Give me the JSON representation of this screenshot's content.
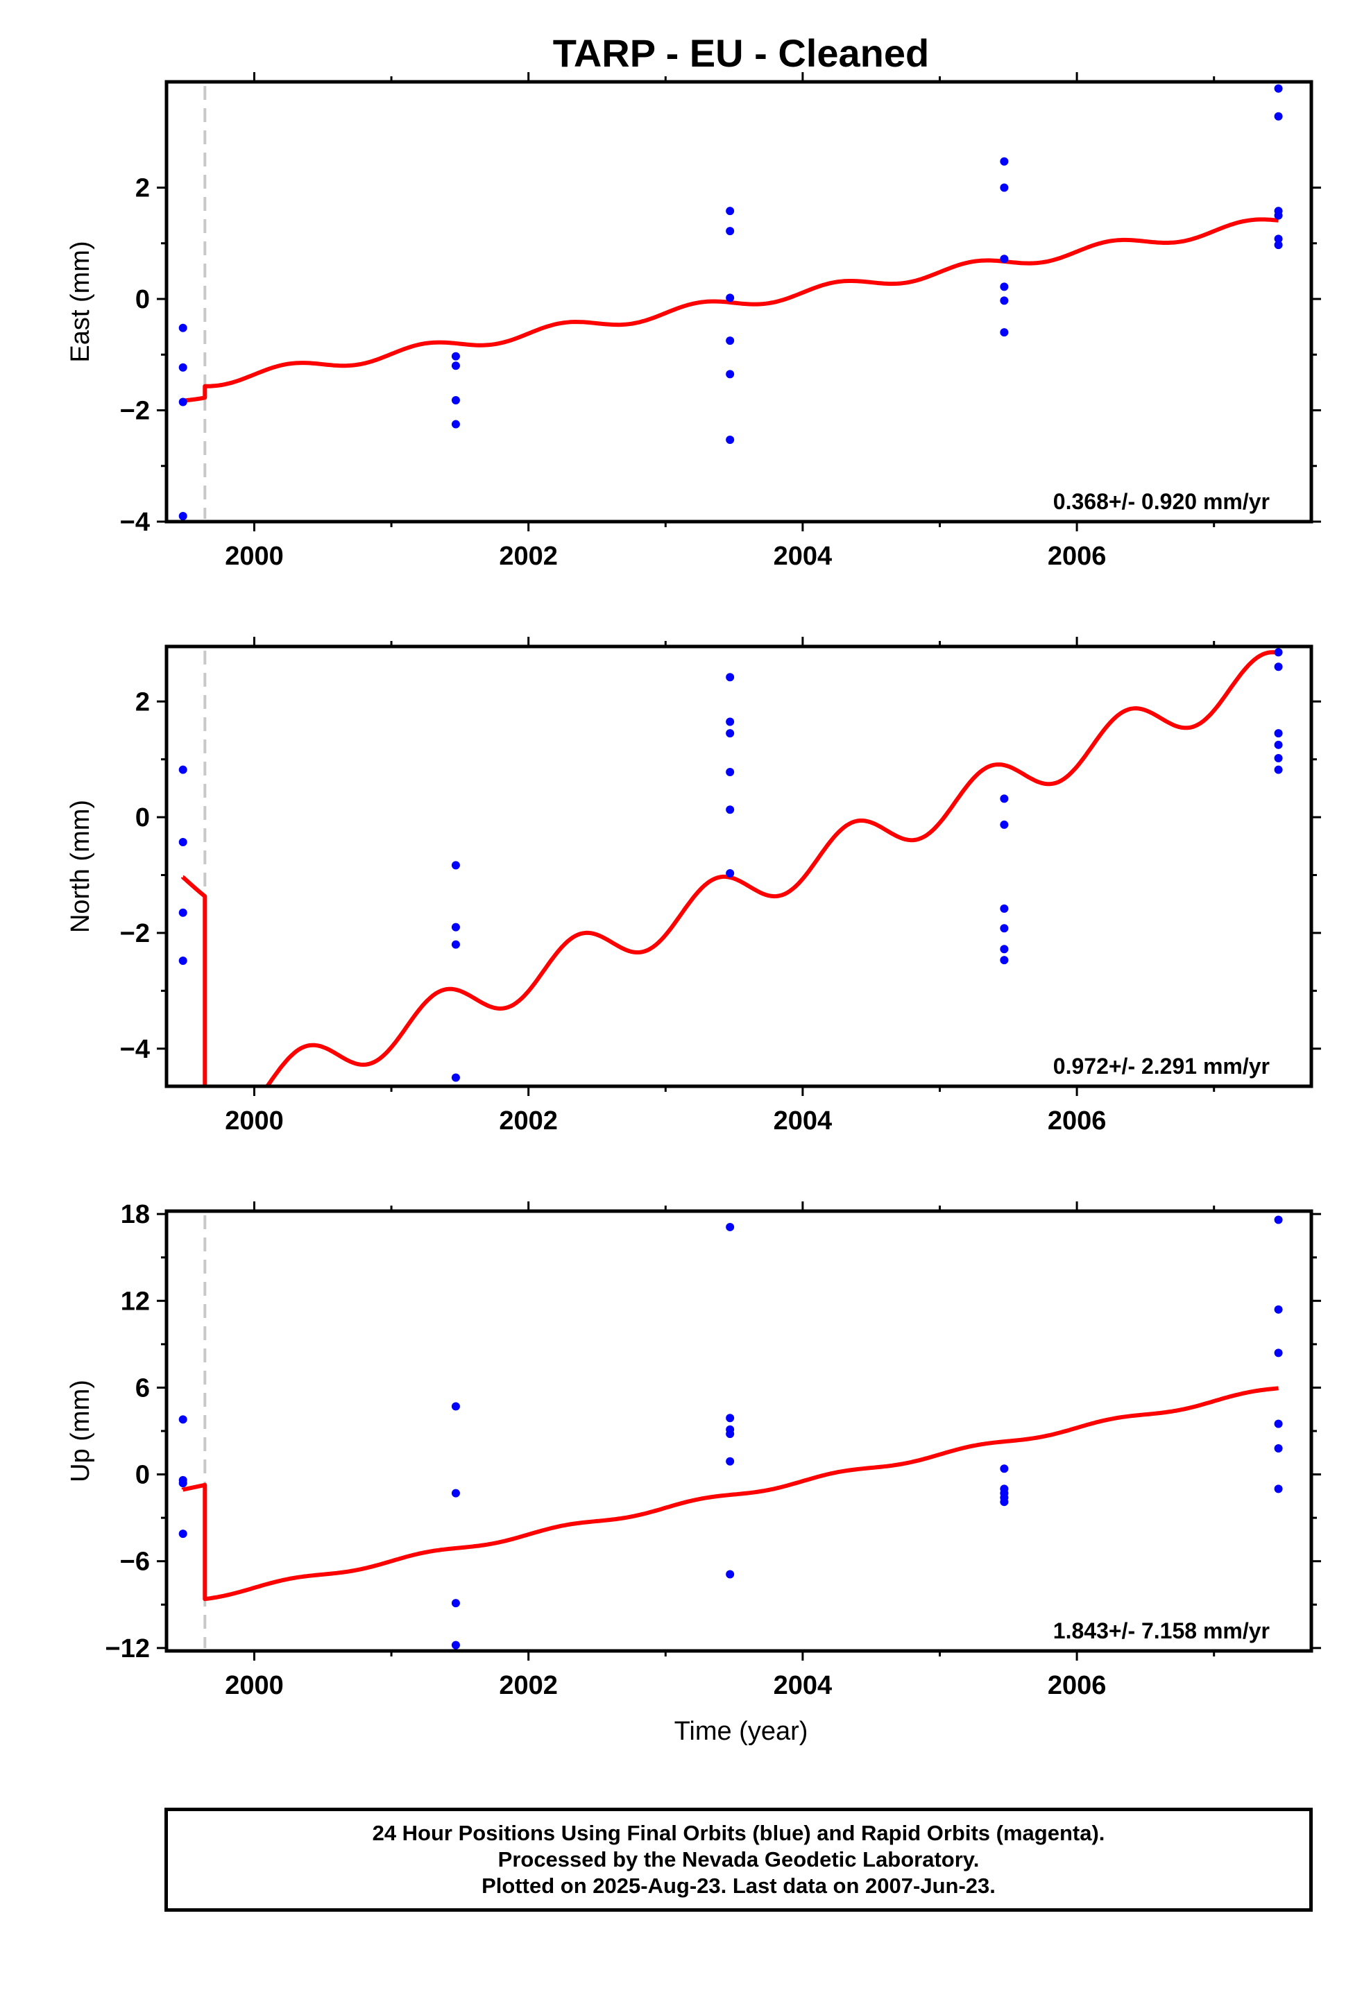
{
  "title": "TARP  - EU - Cleaned",
  "xlabel": "Time (year)",
  "footer": {
    "line1": "24 Hour Positions Using Final Orbits (blue) and Rapid Orbits (magenta).",
    "line2": "Processed by the Nevada Geodetic Laboratory.",
    "line3": "Plotted on 2025-Aug-23. Last data on 2007-Jun-23."
  },
  "colors": {
    "data": "#0000ff",
    "model": "#ff0000",
    "event_line": "#c8c8c8",
    "frame": "#000000"
  },
  "chart_data": [
    {
      "type": "scatter",
      "ylabel": "East (mm)",
      "rate": "0.368+/- 0.920 mm/yr",
      "xlim": [
        1999.36,
        2007.71
      ],
      "ylim": [
        -4.0,
        3.9
      ],
      "xticks": [
        2000,
        2002,
        2004,
        2006
      ],
      "yticks": [
        -4,
        -2,
        0,
        2
      ],
      "ytick_labels": [
        "−4",
        "−2",
        "0",
        "2"
      ],
      "event_line_x": 1999.64,
      "series": [
        {
          "points": [
            [
              1999.48,
              -0.52
            ],
            [
              1999.48,
              -1.23
            ],
            [
              1999.48,
              -1.85
            ],
            [
              1999.48,
              -3.9
            ],
            [
              2001.47,
              -1.03
            ],
            [
              2001.47,
              -1.2
            ],
            [
              2001.47,
              -1.82
            ],
            [
              2001.47,
              -2.25
            ],
            [
              2003.47,
              1.58
            ],
            [
              2003.47,
              1.22
            ],
            [
              2003.47,
              0.02
            ],
            [
              2003.47,
              -0.75
            ],
            [
              2003.47,
              -1.35
            ],
            [
              2003.47,
              -2.53
            ],
            [
              2005.47,
              2.47
            ],
            [
              2005.47,
              2.0
            ],
            [
              2005.47,
              0.72
            ],
            [
              2005.47,
              0.22
            ],
            [
              2005.47,
              -0.03
            ],
            [
              2005.47,
              -0.6
            ],
            [
              2007.47,
              3.78
            ],
            [
              2007.47,
              3.28
            ],
            [
              2007.47,
              1.58
            ],
            [
              2007.47,
              1.5
            ],
            [
              2007.47,
              1.08
            ],
            [
              2007.47,
              0.97
            ]
          ]
        }
      ],
      "model": {
        "segments": [
          {
            "x_start": 1999.48,
            "x_end": 1999.64,
            "slope": 0.9,
            "intercept": -1.84,
            "amplitude": 0.1,
            "phase": 0.0
          },
          {
            "x_start": 1999.64,
            "x_end": 2007.47,
            "slope": 0.368,
            "intercept": -1.49,
            "amplitude": 0.1,
            "phase": 0.0
          }
        ]
      }
    },
    {
      "type": "scatter",
      "ylabel": "North (mm)",
      "rate": "0.972+/- 2.291 mm/yr",
      "xlim": [
        1999.36,
        2007.71
      ],
      "ylim": [
        -4.65,
        2.95
      ],
      "xticks": [
        2000,
        2002,
        2004,
        2006
      ],
      "yticks": [
        -4,
        -2,
        0,
        2
      ],
      "ytick_labels": [
        "−4",
        "−2",
        "0",
        "2"
      ],
      "event_line_x": 1999.64,
      "series": [
        {
          "points": [
            [
              1999.48,
              0.82
            ],
            [
              1999.48,
              -0.43
            ],
            [
              1999.48,
              -1.65
            ],
            [
              1999.48,
              -2.48
            ],
            [
              2001.47,
              -0.83
            ],
            [
              2001.47,
              -1.9
            ],
            [
              2001.47,
              -2.2
            ],
            [
              2001.47,
              -4.5
            ],
            [
              2003.47,
              2.42
            ],
            [
              2003.47,
              1.65
            ],
            [
              2003.47,
              1.45
            ],
            [
              2003.47,
              0.78
            ],
            [
              2003.47,
              0.13
            ],
            [
              2003.47,
              -0.97
            ],
            [
              2005.47,
              0.32
            ],
            [
              2005.47,
              -0.13
            ],
            [
              2005.47,
              -1.58
            ],
            [
              2005.47,
              -1.92
            ],
            [
              2005.47,
              -2.28
            ],
            [
              2005.47,
              -2.47
            ],
            [
              2007.47,
              2.85
            ],
            [
              2007.47,
              2.6
            ],
            [
              2007.47,
              1.45
            ],
            [
              2007.47,
              1.25
            ],
            [
              2007.47,
              1.02
            ],
            [
              2007.47,
              0.82
            ]
          ]
        }
      ],
      "model": {
        "segments": [
          {
            "x_start": 1999.48,
            "x_end": 1999.64,
            "slope": -1.5,
            "intercept": -1.05,
            "amplitude": 0.1,
            "phase": 0.0
          },
          {
            "x_start": 1999.64,
            "x_end": 2007.47,
            "slope": 0.97,
            "intercept": -5.05,
            "amplitude": 0.38,
            "phase": -0.7
          }
        ]
      }
    },
    {
      "type": "scatter",
      "ylabel": "Up (mm)",
      "rate": "1.843+/- 7.158 mm/yr",
      "xlim": [
        1999.36,
        2007.71
      ],
      "ylim": [
        -12.2,
        18.2
      ],
      "xticks": [
        2000,
        2002,
        2004,
        2006
      ],
      "yticks": [
        -12,
        -6,
        0,
        6,
        12,
        18
      ],
      "ytick_labels": [
        "−12",
        "−6",
        "0",
        "6",
        "12",
        "18"
      ],
      "event_line_x": 1999.64,
      "series": [
        {
          "points": [
            [
              1999.48,
              3.8
            ],
            [
              1999.48,
              -0.4
            ],
            [
              1999.48,
              -0.6
            ],
            [
              1999.48,
              -4.1
            ],
            [
              2001.47,
              4.7
            ],
            [
              2001.47,
              -1.3
            ],
            [
              2001.47,
              -8.9
            ],
            [
              2001.47,
              -11.8
            ],
            [
              2003.47,
              17.1
            ],
            [
              2003.47,
              3.9
            ],
            [
              2003.47,
              3.1
            ],
            [
              2003.47,
              2.8
            ],
            [
              2003.47,
              0.9
            ],
            [
              2003.47,
              -6.9
            ],
            [
              2005.47,
              0.4
            ],
            [
              2005.47,
              -1.0
            ],
            [
              2005.47,
              -1.3
            ],
            [
              2005.47,
              -1.6
            ],
            [
              2005.47,
              -1.9
            ],
            [
              2007.47,
              17.6
            ],
            [
              2007.47,
              11.4
            ],
            [
              2007.47,
              8.4
            ],
            [
              2007.47,
              3.5
            ],
            [
              2007.47,
              1.8
            ],
            [
              2007.47,
              -1.0
            ]
          ]
        }
      ],
      "model": {
        "segments": [
          {
            "x_start": 1999.48,
            "x_end": 1999.64,
            "slope": 2.0,
            "intercept": -1.05,
            "amplitude": 0.0,
            "phase": 0.0
          },
          {
            "x_start": 1999.64,
            "x_end": 2007.47,
            "slope": 1.843,
            "intercept": -8.5,
            "amplitude": 0.15,
            "phase": 0.0
          }
        ]
      }
    }
  ]
}
